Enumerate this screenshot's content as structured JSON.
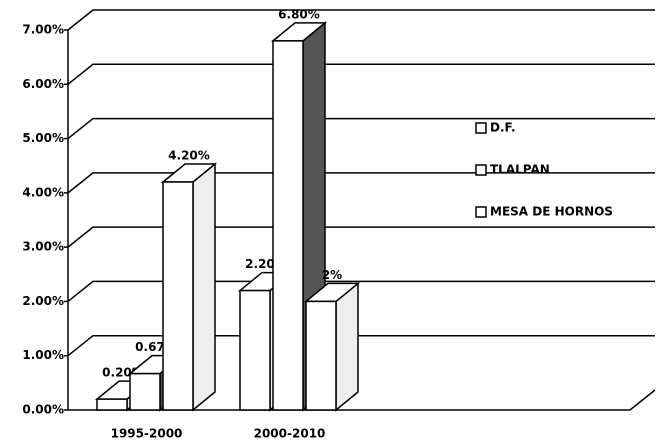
{
  "chart_data": {
    "type": "bar3d",
    "categories": [
      "1995-2000",
      "2000-2010"
    ],
    "series": [
      {
        "name": "D.F.",
        "color": "#ffffff",
        "values": [
          0.2,
          2.2
        ],
        "value_labels": [
          "0.20%",
          "2.20%"
        ]
      },
      {
        "name": "TLALPAN",
        "color": "#ffffff",
        "values": [
          0.67,
          6.8
        ],
        "value_labels": [
          "0.67%",
          "6.80%"
        ]
      },
      {
        "name": "MESA DE HORNOS",
        "color": "#ffffff",
        "values": [
          4.2,
          2
        ],
        "value_labels": [
          "4.20%",
          "2%"
        ]
      }
    ],
    "ylim": [
      0,
      7
    ],
    "yticks": [
      {
        "value": 0,
        "label": "0.00%"
      },
      {
        "value": 1,
        "label": "1.00%"
      },
      {
        "value": 2,
        "label": "2.00%"
      },
      {
        "value": 3,
        "label": "3.00%"
      },
      {
        "value": 4,
        "label": "4.00%"
      },
      {
        "value": 5,
        "label": "5.00%"
      },
      {
        "value": 6,
        "label": "6.00%"
      },
      {
        "value": 7,
        "label": "7.00%"
      }
    ],
    "grid": true,
    "legend": "right"
  }
}
